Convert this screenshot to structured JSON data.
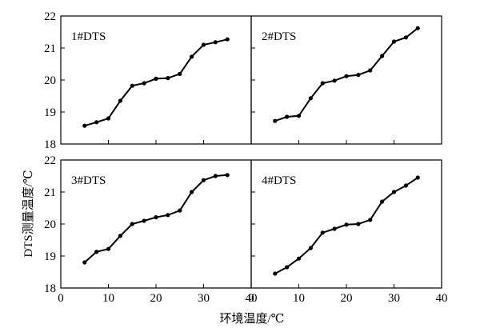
{
  "chart_data": [
    {
      "type": "line",
      "title": "1#DTS",
      "x": [
        5,
        7.5,
        10,
        12.5,
        15,
        17.5,
        20,
        22.5,
        25,
        27.5,
        30,
        32.5,
        35
      ],
      "series": [
        {
          "values": [
            18.57,
            18.68,
            18.8,
            19.35,
            19.82,
            19.9,
            20.04,
            20.06,
            20.19,
            20.73,
            21.1,
            21.18,
            21.27
          ]
        }
      ],
      "xlim": [
        0,
        40
      ],
      "ylim": [
        18,
        22
      ],
      "xticks": [
        "0",
        "10",
        "20",
        "30",
        "40"
      ],
      "yticks": [
        "18",
        "19",
        "20",
        "21",
        "22"
      ]
    },
    {
      "type": "line",
      "title": "2#DTS",
      "x": [
        5,
        7.5,
        10,
        12.5,
        15,
        17.5,
        20,
        22.5,
        25,
        27.5,
        30,
        32.5,
        35
      ],
      "series": [
        {
          "values": [
            18.72,
            18.85,
            18.88,
            19.43,
            19.9,
            19.98,
            20.12,
            20.16,
            20.3,
            20.75,
            21.2,
            21.33,
            21.62
          ]
        }
      ],
      "xlim": [
        0,
        40
      ],
      "ylim": [
        18,
        22
      ],
      "xticks": [
        "0",
        "10",
        "20",
        "30",
        "40"
      ],
      "yticks": [
        "18",
        "19",
        "20",
        "21",
        "22"
      ]
    },
    {
      "type": "line",
      "title": "3#DTS",
      "x": [
        5,
        7.5,
        10,
        12.5,
        15,
        17.5,
        20,
        22.5,
        25,
        27.5,
        30,
        32.5,
        35
      ],
      "series": [
        {
          "values": [
            18.8,
            19.13,
            19.22,
            19.63,
            20.0,
            20.1,
            20.21,
            20.28,
            20.42,
            21.0,
            21.37,
            21.5,
            21.53
          ]
        }
      ],
      "xlim": [
        0,
        40
      ],
      "ylim": [
        18,
        22
      ],
      "xticks": [
        "0",
        "10",
        "20",
        "30",
        "40"
      ],
      "yticks": [
        "18",
        "19",
        "20",
        "21",
        "22"
      ]
    },
    {
      "type": "line",
      "title": "4#DTS",
      "x": [
        5,
        7.5,
        10,
        12.5,
        15,
        17.5,
        20,
        22.5,
        25,
        27.5,
        30,
        32.5,
        35
      ],
      "series": [
        {
          "values": [
            18.45,
            18.65,
            18.92,
            19.25,
            19.73,
            19.85,
            19.98,
            20.0,
            20.13,
            20.7,
            21.0,
            21.2,
            21.45
          ]
        }
      ],
      "xlim": [
        0,
        40
      ],
      "ylim": [
        18,
        22
      ],
      "xticks": [
        "0",
        "10",
        "20",
        "30",
        "40"
      ],
      "yticks": [
        "18",
        "19",
        "20",
        "21",
        "22"
      ]
    }
  ],
  "xlabel": "环境温度/℃",
  "ylabel": "DTS测量温度/℃"
}
